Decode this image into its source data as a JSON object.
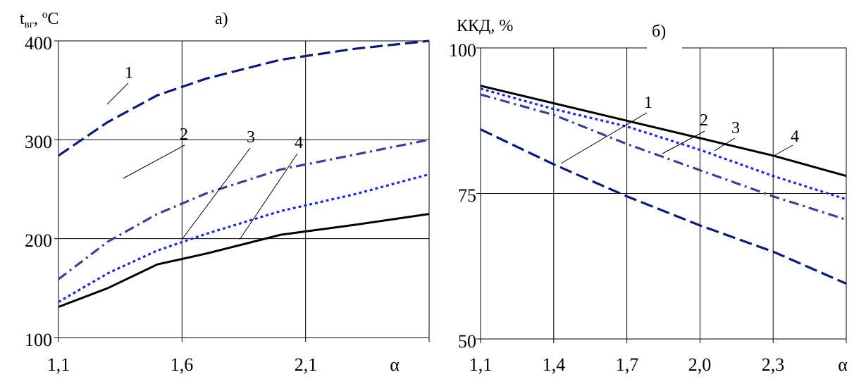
{
  "chart_data": [
    {
      "type": "line",
      "panel_label": "а)",
      "ylabel": "t",
      "ylabel_sub": "вг",
      "ylabel_unit": ", ºС",
      "xlabel": "α",
      "xlim": [
        1.1,
        2.6
      ],
      "ylim": [
        100,
        400
      ],
      "x_ticks": [
        "1,1",
        "1,6",
        "2,1"
      ],
      "y_ticks": [
        "100",
        "200",
        "300",
        "400"
      ],
      "grid": true,
      "series": [
        {
          "label": "1",
          "style": "dashed",
          "color": "#0a1a7a",
          "x": [
            1.1,
            1.3,
            1.5,
            1.7,
            2.0,
            2.3,
            2.6
          ],
          "y": [
            284,
            318,
            345,
            362,
            381,
            392,
            400
          ]
        },
        {
          "label": "2",
          "style": "dashdot",
          "color": "#3a3f9a",
          "x": [
            1.1,
            1.3,
            1.5,
            1.7,
            2.0,
            2.3,
            2.6
          ],
          "y": [
            159,
            197,
            225,
            246,
            270,
            285,
            300
          ]
        },
        {
          "label": "3",
          "style": "dotted",
          "color": "#1a2be0",
          "x": [
            1.1,
            1.3,
            1.5,
            1.7,
            2.0,
            2.3,
            2.6
          ],
          "y": [
            136,
            165,
            188,
            205,
            228,
            245,
            265
          ]
        },
        {
          "label": "4",
          "style": "solid",
          "color": "#000000",
          "x": [
            1.1,
            1.3,
            1.5,
            1.7,
            2.0,
            2.3,
            2.6
          ],
          "y": [
            131,
            150,
            174,
            185,
            204,
            214,
            225
          ]
        }
      ]
    },
    {
      "type": "line",
      "panel_label": "б)",
      "ylabel": "ККД, %",
      "xlabel": "α",
      "xlim": [
        1.1,
        2.6
      ],
      "ylim": [
        50,
        100
      ],
      "x_ticks": [
        "1,1",
        "1,4",
        "1,7",
        "2,0",
        "2,3"
      ],
      "y_ticks": [
        "50",
        "75",
        "100"
      ],
      "grid": true,
      "series": [
        {
          "label": "1",
          "style": "dashed",
          "color": "#0a1a7a",
          "x": [
            1.1,
            1.4,
            1.7,
            2.0,
            2.3,
            2.6
          ],
          "y": [
            86,
            80,
            74.5,
            69.5,
            65,
            59.5
          ]
        },
        {
          "label": "2",
          "style": "dashdot",
          "color": "#3a3f9a",
          "x": [
            1.1,
            1.4,
            1.7,
            2.0,
            2.3,
            2.6
          ],
          "y": [
            92,
            88.5,
            83.5,
            79,
            74.5,
            70.5
          ]
        },
        {
          "label": "3",
          "style": "dotted",
          "color": "#1a2be0",
          "x": [
            1.1,
            1.4,
            1.7,
            2.0,
            2.3,
            2.6
          ],
          "y": [
            93,
            89.5,
            86.5,
            82.5,
            78,
            74
          ]
        },
        {
          "label": "4",
          "style": "solid",
          "color": "#000000",
          "x": [
            1.1,
            1.4,
            1.7,
            2.0,
            2.3,
            2.6
          ],
          "y": [
            93.5,
            90.5,
            87.5,
            84.5,
            81.5,
            78
          ]
        }
      ]
    }
  ]
}
